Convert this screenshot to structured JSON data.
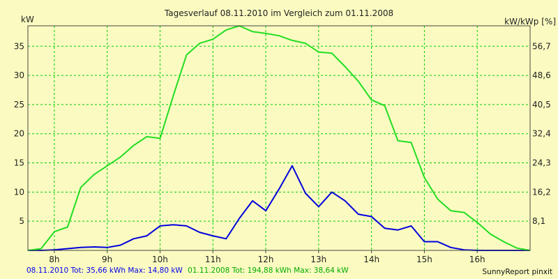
{
  "chart_data": {
    "type": "line",
    "title": "Tagesverlauf 08.11.2010 im Vergleich zum 01.11.2008",
    "ylabel_left": "kW",
    "ylabel_right": "kW/kWp [%]",
    "xlim": [
      7.5,
      17.0
    ],
    "ylim": [
      0,
      38.5
    ],
    "x_ticks": [
      8,
      9,
      10,
      11,
      12,
      13,
      14,
      15,
      16
    ],
    "x_tick_labels": [
      "8h",
      "9h",
      "10h",
      "11h",
      "12h",
      "13h",
      "14h",
      "15h",
      "16h"
    ],
    "y_ticks": [
      5,
      10,
      15,
      20,
      25,
      30,
      35
    ],
    "y_tick_labels": [
      "5",
      "10",
      "15",
      "20",
      "25",
      "30",
      "35"
    ],
    "y_right_ticks": [
      5,
      10,
      15,
      20,
      25,
      30,
      35
    ],
    "y_right_tick_labels": [
      "8,1",
      "16,2",
      "24,3",
      "32,4",
      "40,5",
      "48,6",
      "56,7"
    ],
    "grid": true,
    "series": [
      {
        "name": "08.11.2010",
        "color": "#0000dd",
        "x": [
          7.5,
          7.75,
          8.0,
          8.25,
          8.5,
          8.75,
          9.0,
          9.25,
          9.5,
          9.75,
          10.0,
          10.25,
          10.5,
          10.75,
          11.0,
          11.25,
          11.5,
          11.75,
          12.0,
          12.25,
          12.5,
          12.75,
          13.0,
          13.25,
          13.5,
          13.75,
          14.0,
          14.25,
          14.5,
          14.75,
          15.0,
          15.25,
          15.5,
          15.75,
          16.0,
          16.25,
          16.5,
          16.75,
          17.0
        ],
        "y": [
          0,
          0,
          0.1,
          0.3,
          0.5,
          0.6,
          0.5,
          0.9,
          2.0,
          2.5,
          4.2,
          4.4,
          4.2,
          3.1,
          2.5,
          2.0,
          5.5,
          8.5,
          6.8,
          10.5,
          14.5,
          9.8,
          7.5,
          10.0,
          8.5,
          6.2,
          5.8,
          3.8,
          3.5,
          4.2,
          1.5,
          1.5,
          0.5,
          0.1,
          0,
          0,
          0,
          0,
          0
        ]
      },
      {
        "name": "01.11.2008",
        "color": "#22dd22",
        "x": [
          7.5,
          7.75,
          8.0,
          8.25,
          8.5,
          8.75,
          9.0,
          9.25,
          9.5,
          9.75,
          10.0,
          10.25,
          10.5,
          10.75,
          11.0,
          11.25,
          11.5,
          11.75,
          12.0,
          12.25,
          12.5,
          12.75,
          13.0,
          13.25,
          13.5,
          13.75,
          14.0,
          14.25,
          14.5,
          14.75,
          15.0,
          15.25,
          15.5,
          15.75,
          16.0,
          16.25,
          16.5,
          16.75,
          17.0
        ],
        "y": [
          0,
          0.3,
          3.2,
          4.0,
          10.8,
          13.0,
          14.5,
          16.0,
          18.0,
          19.5,
          19.2,
          26.5,
          33.5,
          35.5,
          36.2,
          37.8,
          38.5,
          37.5,
          37.2,
          36.8,
          36.0,
          35.5,
          34.0,
          33.8,
          31.5,
          29.0,
          25.8,
          24.8,
          18.8,
          18.5,
          12.5,
          8.8,
          6.8,
          6.5,
          4.8,
          2.8,
          1.5,
          0.4,
          0
        ]
      }
    ]
  },
  "footer": {
    "series1_summary": "08.11.2010 Tot: 35,66 kWh Max: 14,80 kW",
    "series2_summary": "01.11.2008 Tot: 194,88 kWh Max: 38,64 kW",
    "brand": "SunnyReport pinxit"
  },
  "colors": {
    "background": "#fbfbc1",
    "grid": "#00cc00",
    "axis": "#444444"
  }
}
